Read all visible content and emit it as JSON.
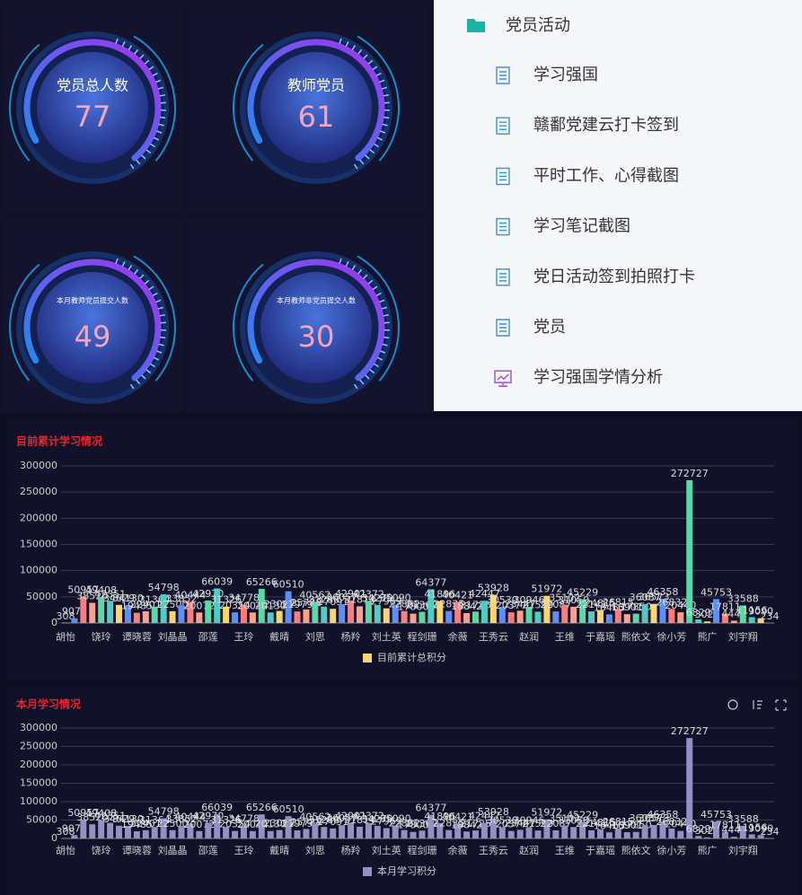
{
  "gauges": [
    {
      "label": "党员总人数",
      "value": 77
    },
    {
      "label": "教师党员",
      "value": 61
    },
    {
      "label": "本月教师党员提交人数",
      "value": 49
    },
    {
      "label": "本月教师非党员提交人数",
      "value": 30
    }
  ],
  "menu": {
    "title": "党员活动",
    "items": [
      "学习强国",
      "赣鄱党建云打卡签到",
      "平时工作、心得截图",
      "学习笔记截图",
      "党日活动签到拍照打卡",
      "党员",
      "学习强国学情分析"
    ]
  },
  "chart_data": [
    {
      "type": "bar",
      "title": "目前累计学习情况",
      "categories": [
        "胡怡",
        null,
        null,
        null,
        "饶玲",
        null,
        null,
        null,
        "谭晓蓉",
        null,
        null,
        null,
        "刘晶晶",
        null,
        null,
        null,
        "邵莲",
        null,
        null,
        null,
        "王玲",
        null,
        null,
        null,
        "戴晴",
        null,
        null,
        null,
        "刘思",
        null,
        null,
        null,
        "杨羚",
        null,
        null,
        null,
        "刘土英",
        null,
        null,
        null,
        "程剑珊",
        null,
        null,
        null,
        "余薇",
        null,
        null,
        null,
        "王秀云",
        null,
        null,
        null,
        "赵润",
        null,
        null,
        null,
        "王维",
        null,
        null,
        null,
        "于嘉瑶",
        null,
        null,
        null,
        "熊依文",
        null,
        null,
        null,
        "徐小芳",
        null,
        null,
        null,
        "熊广",
        null,
        null,
        null,
        "刘宇翔",
        null,
        null,
        null
      ],
      "series": [
        {
          "name": "目前累计总积分",
          "color": "#fdd56a",
          "colors": [
            "#fdd56a",
            "#5b8ff9",
            "#ff7c7c",
            "#ffa08a",
            "#5ad8a6",
            "#4ecdc4"
          ],
          "values": [
            308,
            9076,
            50957,
            38520,
            49408,
            42351,
            34629,
            34130,
            19485,
            22401,
            31364,
            54798,
            22500,
            33852,
            40444,
            20072,
            42970,
            66039,
            31326,
            20354,
            34778,
            20044,
            65266,
            20130,
            23007,
            60510,
            21979,
            25788,
            40562,
            31288,
            27091,
            36057,
            42901,
            31814,
            42372,
            34279,
            27969,
            35090,
            22882,
            17800,
            21362,
            64377,
            41896,
            22835,
            40421,
            18842,
            21725,
            42447,
            53928,
            30530,
            20377,
            23447,
            30946,
            21599,
            51972,
            22087,
            35102,
            31050,
            45229,
            22141,
            24815,
            16463,
            26815,
            16901,
            17850,
            36087,
            36573,
            46358,
            26832,
            20440,
            272727,
            6829,
            3022,
            45753,
            17811,
            4445,
            33588,
            11156,
            9090,
            234
          ]
        }
      ],
      "ylim": [
        0,
        300000
      ],
      "yticks": [
        0,
        50000,
        100000,
        150000,
        200000,
        250000,
        300000
      ],
      "grid": true
    },
    {
      "type": "bar",
      "title": "本月学习情况",
      "categories": [
        "胡怡",
        null,
        null,
        null,
        "饶玲",
        null,
        null,
        null,
        "谭晓蓉",
        null,
        null,
        null,
        "刘晶晶",
        null,
        null,
        null,
        "邵莲",
        null,
        null,
        null,
        "王玲",
        null,
        null,
        null,
        "戴晴",
        null,
        null,
        null,
        "刘思",
        null,
        null,
        null,
        "杨羚",
        null,
        null,
        null,
        "刘土英",
        null,
        null,
        null,
        "程剑珊",
        null,
        null,
        null,
        "余薇",
        null,
        null,
        null,
        "王秀云",
        null,
        null,
        null,
        "赵润",
        null,
        null,
        null,
        "王维",
        null,
        null,
        null,
        "于嘉瑶",
        null,
        null,
        null,
        "熊依文",
        null,
        null,
        null,
        "徐小芳",
        null,
        null,
        null,
        "熊广",
        null,
        null,
        null,
        "刘宇翔",
        null,
        null,
        null
      ],
      "series": [
        {
          "name": "本月学习积分",
          "color": "#9390c4",
          "values": [
            308,
            9076,
            50957,
            38520,
            49408,
            42351,
            34629,
            34130,
            19485,
            22401,
            31364,
            54798,
            22500,
            33852,
            40444,
            20072,
            42970,
            66039,
            31326,
            20354,
            34778,
            20044,
            65266,
            20130,
            23007,
            60510,
            21979,
            25788,
            40562,
            31288,
            27091,
            36057,
            42901,
            31814,
            42372,
            34279,
            27969,
            35090,
            22882,
            17800,
            21362,
            64377,
            41896,
            22835,
            40421,
            18842,
            21725,
            42447,
            53928,
            30530,
            20377,
            23447,
            30946,
            21599,
            51972,
            22087,
            35102,
            31050,
            45229,
            22141,
            24815,
            16463,
            26815,
            16901,
            17850,
            36087,
            36573,
            46358,
            26832,
            20440,
            272727,
            6829,
            3022,
            45753,
            17811,
            4445,
            33588,
            11156,
            9090,
            234
          ]
        }
      ],
      "ylim": [
        0,
        300000
      ],
      "yticks": [
        0,
        50000,
        100000,
        150000,
        200000,
        250000,
        300000
      ],
      "grid": true
    }
  ]
}
